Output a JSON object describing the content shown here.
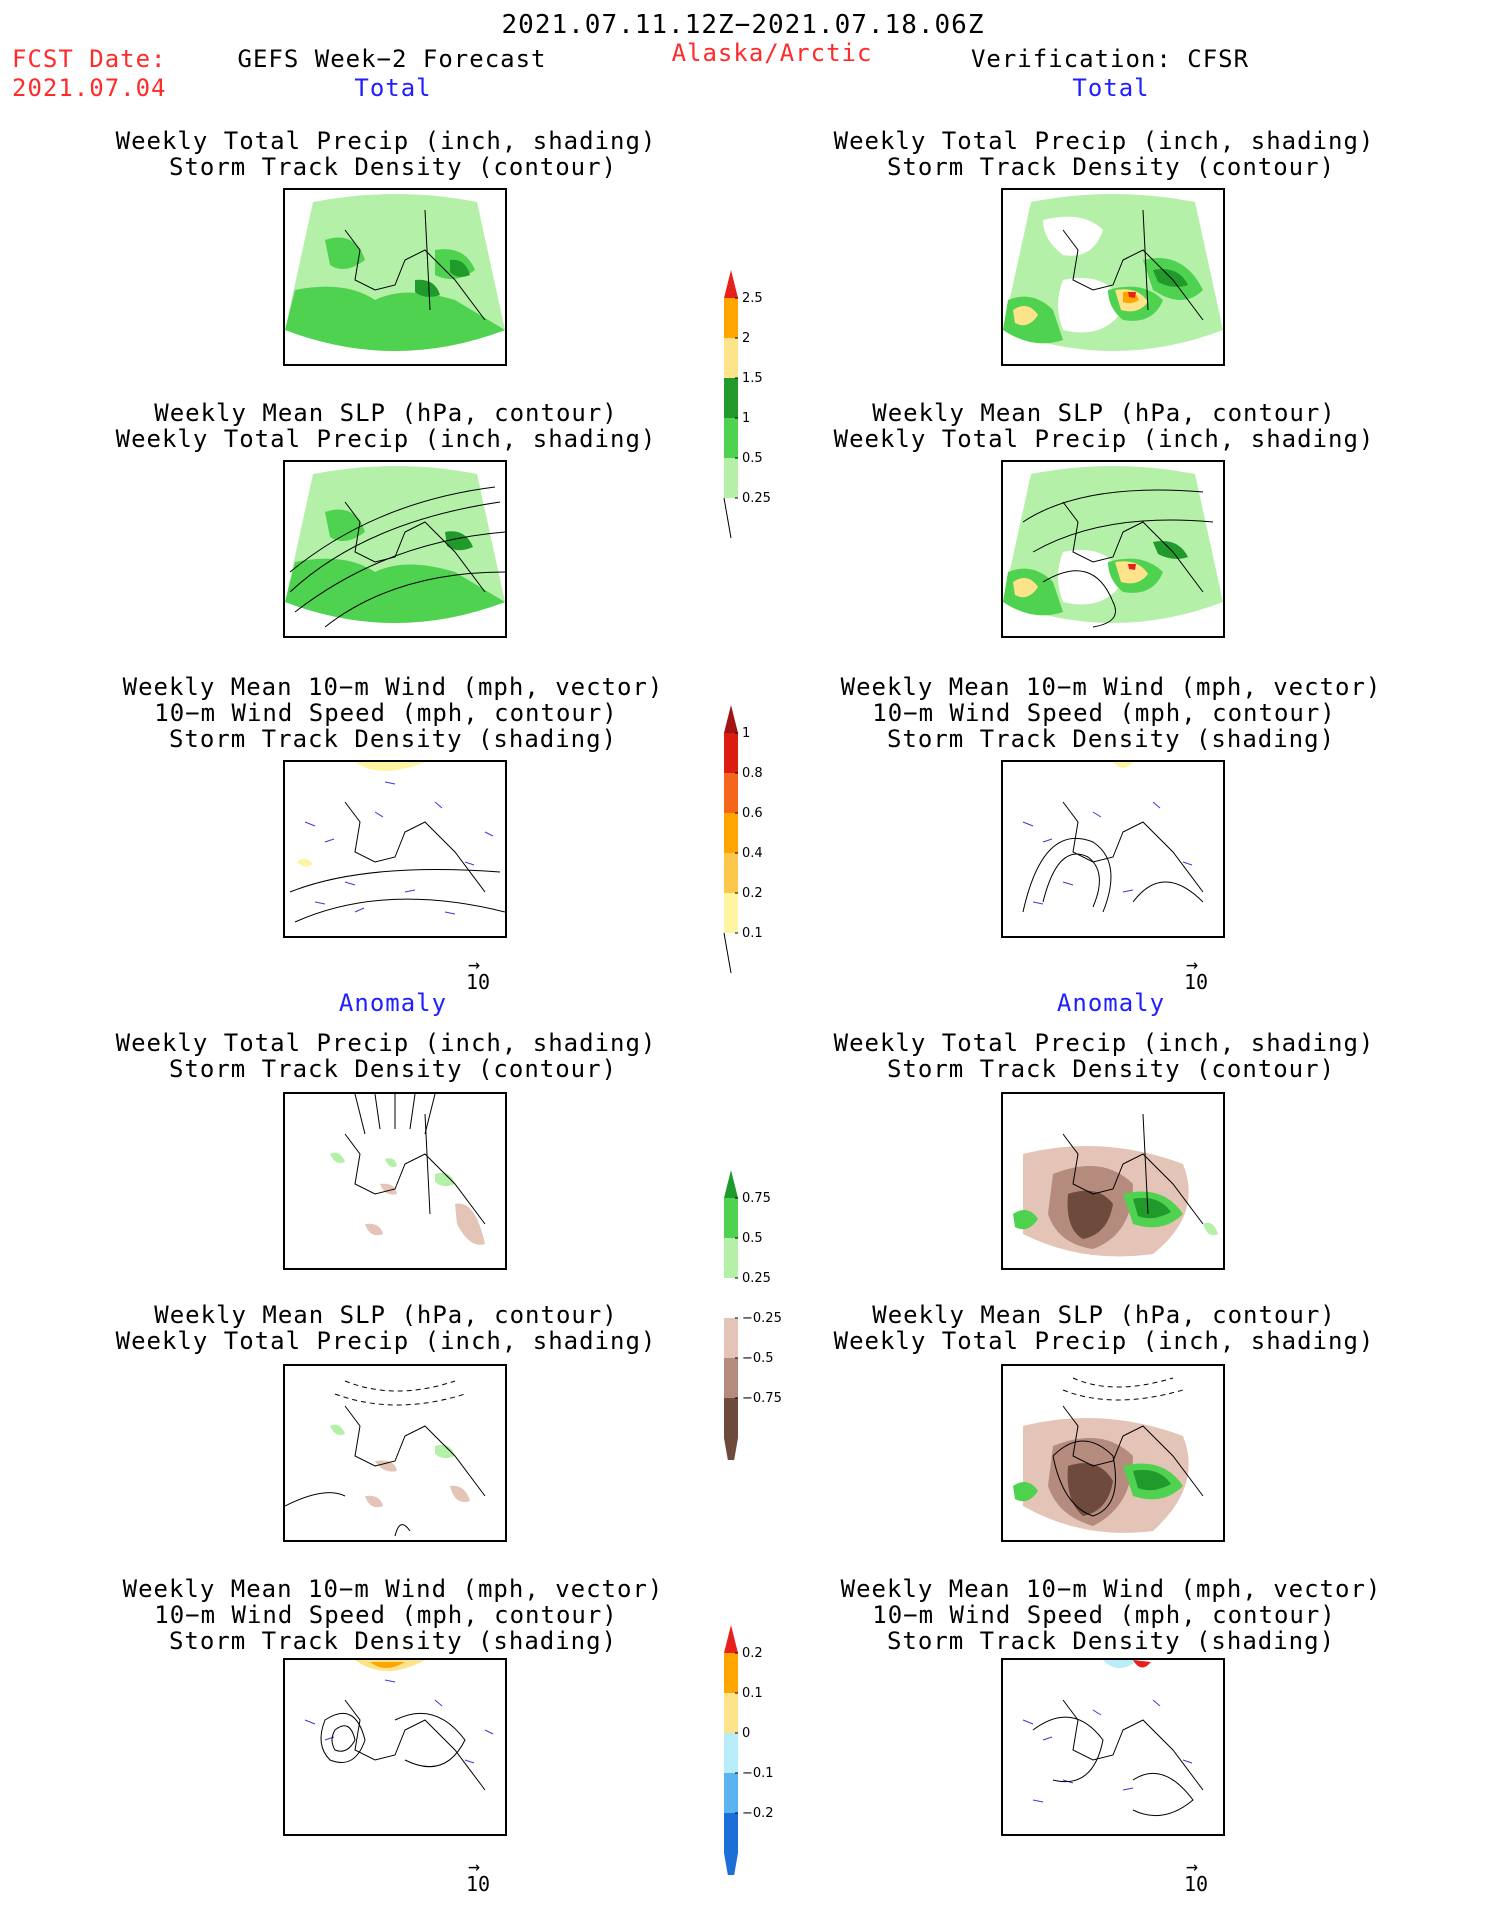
{
  "header": {
    "date_range": "2021.07.11.12Z−2021.07.18.06Z",
    "fcst_label": "FCST Date:",
    "fcst_date": "2021.07.04",
    "model_title": "GEFS Week−2 Forecast",
    "region": "Alaska/Arctic",
    "verification": "Verification: CFSR"
  },
  "sections": {
    "total": "Total",
    "anomaly": "Anomaly"
  },
  "panel_titles": {
    "precip_track": [
      "Weekly Total Precip (inch, shading)",
      "Storm Track Density (contour)"
    ],
    "slp_precip": [
      "Weekly Mean SLP (hPa, contour)",
      "Weekly Total Precip (inch, shading)"
    ],
    "wind_track": [
      "Weekly Mean 10−m Wind (mph, vector)",
      "10−m Wind Speed (mph, contour)",
      "Storm Track Density (shading)"
    ]
  },
  "vector_reference": "10",
  "colorbars": {
    "precip_total": {
      "labels": [
        "2.5",
        "2",
        "1.5",
        "1",
        "0.5",
        "0.25"
      ],
      "colors": [
        "#e8201c",
        "#ffa500",
        "#fde38a",
        "#1f9a2b",
        "#4fd24f",
        "#b4f0a8"
      ]
    },
    "track_total": {
      "labels": [
        "1",
        "0.8",
        "0.6",
        "0.4",
        "0.2",
        "0.1"
      ],
      "colors": [
        "#a11414",
        "#dd1c10",
        "#f5661c",
        "#ffa500",
        "#fcc84b",
        "#fef5a2"
      ]
    },
    "precip_anom": {
      "labels": [
        "0.75",
        "0.5",
        "0.25",
        "−0.25",
        "−0.5",
        "−0.75"
      ],
      "colors": [
        "#1f9a2b",
        "#4fd24f",
        "#b4f0a8",
        "#ffffff",
        "#e4c4b7",
        "#b48b7c",
        "#6e4a3c"
      ]
    },
    "track_anom": {
      "labels": [
        "0.2",
        "0.1",
        "0",
        "−0.1",
        "−0.2"
      ],
      "colors": [
        "#e8201c",
        "#ffa500",
        "#fde38a",
        "#b8ecf8",
        "#5bb4f0",
        "#1c6fd6"
      ]
    }
  }
}
